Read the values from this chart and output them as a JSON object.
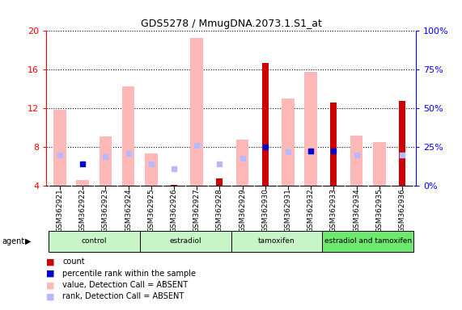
{
  "title": "GDS5278 / MmugDNA.2073.1.S1_at",
  "samples": [
    "GSM362921",
    "GSM362922",
    "GSM362923",
    "GSM362924",
    "GSM362925",
    "GSM362926",
    "GSM362927",
    "GSM362928",
    "GSM362929",
    "GSM362930",
    "GSM362931",
    "GSM362932",
    "GSM362933",
    "GSM362934",
    "GSM362935",
    "GSM362936"
  ],
  "groups": [
    {
      "name": "control",
      "start": 0,
      "end": 3,
      "color": "#c8f5c8"
    },
    {
      "name": "estradiol",
      "start": 4,
      "end": 7,
      "color": "#c8f5c8"
    },
    {
      "name": "tamoxifen",
      "start": 8,
      "end": 11,
      "color": "#c8f5c8"
    },
    {
      "name": "estradiol and tamoxifen",
      "start": 12,
      "end": 15,
      "color": "#6ee86e"
    }
  ],
  "value_absent": [
    11.9,
    4.6,
    9.1,
    14.3,
    7.4,
    null,
    19.3,
    null,
    8.8,
    null,
    13.0,
    15.8,
    null,
    9.2,
    8.5,
    null
  ],
  "rank_absent": [
    7.2,
    null,
    7.0,
    7.4,
    6.3,
    5.8,
    8.2,
    6.3,
    6.9,
    null,
    7.5,
    7.5,
    null,
    7.2,
    null,
    7.2
  ],
  "value_present": [
    null,
    null,
    null,
    null,
    null,
    4.1,
    null,
    4.8,
    null,
    16.7,
    null,
    null,
    12.6,
    null,
    null,
    12.8
  ],
  "rank_present": [
    null,
    6.3,
    null,
    null,
    null,
    null,
    null,
    null,
    null,
    8.05,
    null,
    7.6,
    7.6,
    null,
    null,
    null
  ],
  "ylim_left": [
    4,
    20
  ],
  "ylim_right": [
    0,
    100
  ],
  "yticks_left": [
    4,
    8,
    12,
    16,
    20
  ],
  "yticks_right": [
    0,
    25,
    50,
    75,
    100
  ],
  "absent_value_color": "#ffb8b8",
  "absent_rank_color": "#b8b8ff",
  "present_value_color": "#cc0000",
  "present_rank_color": "#0000cc",
  "tick_label_bg": "#c8c8c8",
  "legend_items": [
    {
      "color": "#cc0000",
      "label": "count"
    },
    {
      "color": "#0000cc",
      "label": "percentile rank within the sample"
    },
    {
      "color": "#ffb8b8",
      "label": "value, Detection Call = ABSENT"
    },
    {
      "color": "#b8b8ff",
      "label": "rank, Detection Call = ABSENT"
    }
  ]
}
